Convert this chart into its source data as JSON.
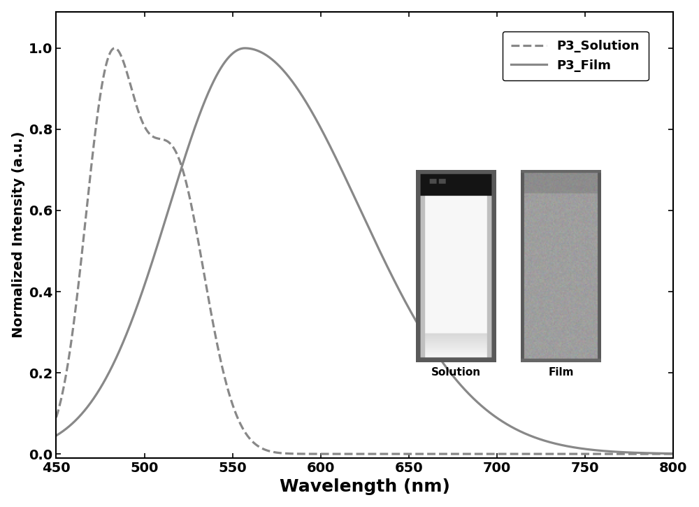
{
  "title": "",
  "xlabel": "Wavelength (nm)",
  "ylabel": "Normalized Intensity (a.u.)",
  "xlim": [
    450,
    800
  ],
  "ylim": [
    -0.01,
    1.09
  ],
  "xticks": [
    450,
    500,
    550,
    600,
    650,
    700,
    750,
    800
  ],
  "yticks": [
    0.0,
    0.2,
    0.4,
    0.6,
    0.8,
    1.0
  ],
  "line_color": "#888888",
  "legend_labels": [
    "P3_Solution",
    "P3_Film"
  ],
  "xlabel_fontsize": 18,
  "ylabel_fontsize": 14,
  "tick_fontsize": 14,
  "legend_fontsize": 13,
  "inset1_label": "Solution",
  "inset2_label": "Film"
}
